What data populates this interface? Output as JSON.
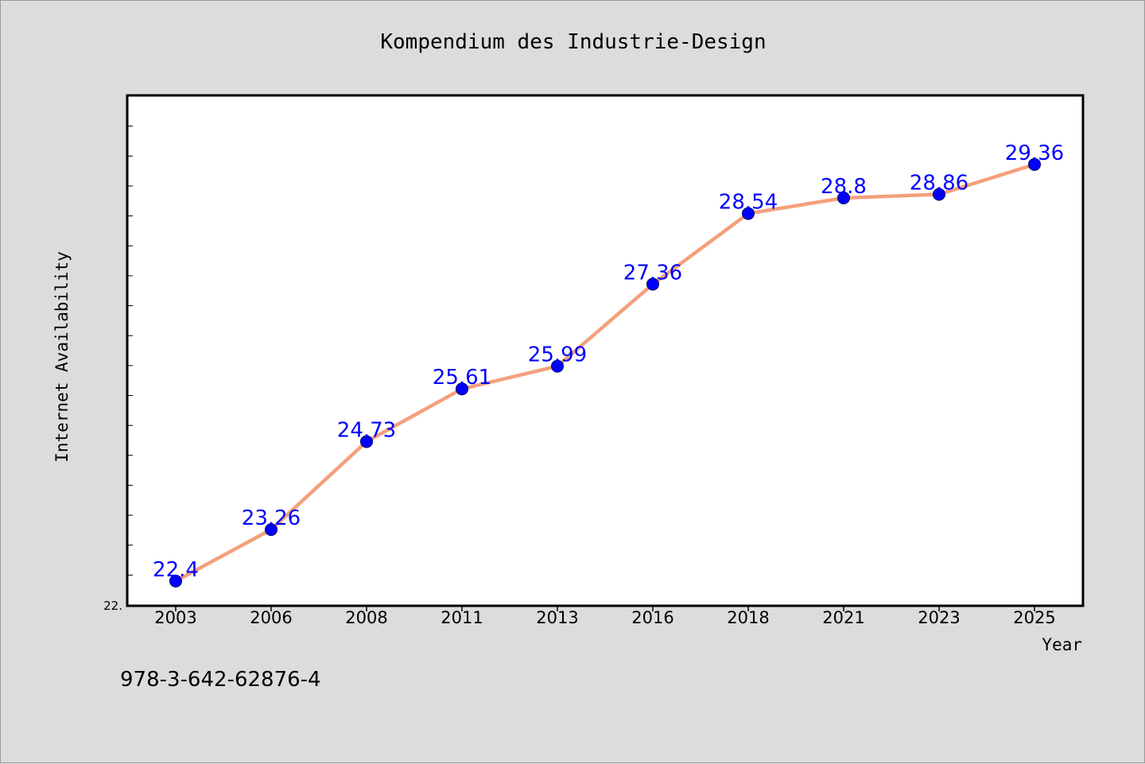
{
  "chart_data": {
    "type": "line",
    "title": "Kompendium des Industrie-Design",
    "xlabel": "Year",
    "ylabel": "Internet Availability",
    "categories": [
      "2003",
      "2006",
      "2008",
      "2011",
      "2013",
      "2016",
      "2018",
      "2021",
      "2023",
      "2025"
    ],
    "series": [
      {
        "values": [
          22.4,
          23.26,
          24.73,
          25.61,
          25.99,
          27.36,
          28.54,
          28.8,
          28.86,
          29.36
        ],
        "labels": [
          "22.4",
          "23.26",
          "24.73",
          "25.61",
          "25.99",
          "27.36",
          "28.54",
          "28.8",
          "28.86",
          "29.36"
        ]
      }
    ],
    "ylim": [
      22.0,
      30.5
    ],
    "y_tick_label": "22.",
    "grid": false,
    "colors": {
      "line": "#f4a07c",
      "marker": "#0000ff",
      "data_label": "#0000ff",
      "plot_background": "#ffffff",
      "figure_background": "#dcdcdc"
    }
  },
  "footer": {
    "isbn": "978-3-642-62876-4"
  }
}
